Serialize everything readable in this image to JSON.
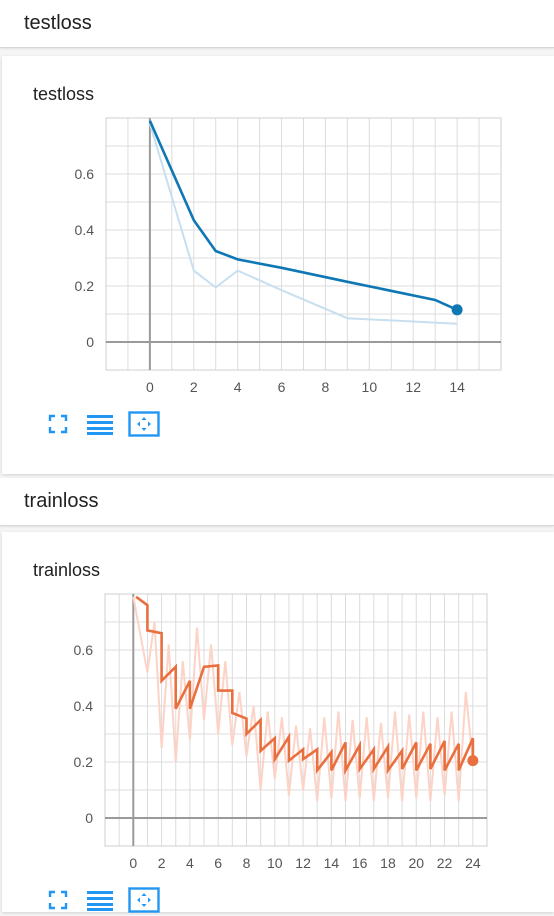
{
  "sections": [
    {
      "header": "testloss",
      "card_title": "testloss"
    },
    {
      "header": "trainloss",
      "card_title": "trainloss"
    }
  ],
  "toolbar": {
    "icons": [
      "fullscreen-icon",
      "data-table-icon",
      "fit-domain-icon"
    ],
    "accent": "#2196f3"
  },
  "chart_data": [
    {
      "type": "line",
      "title": "testloss",
      "xlabel": "",
      "ylabel": "",
      "xlim": [
        -2,
        16
      ],
      "ylim": [
        -0.1,
        0.8
      ],
      "xticks": [
        "0",
        "2",
        "4",
        "6",
        "8",
        "10",
        "12",
        "14"
      ],
      "yticks": [
        "0",
        "0.2",
        "0.4",
        "0.6"
      ],
      "grid": true,
      "series": [
        {
          "role": "raw",
          "color": "#c8dff0",
          "x": [
            0,
            2,
            3,
            4,
            6,
            9,
            14
          ],
          "y": [
            0.78,
            0.255,
            0.195,
            0.255,
            0.185,
            0.085,
            0.065
          ]
        },
        {
          "role": "smoothed",
          "color": "#0e77b4",
          "x": [
            0,
            2,
            3,
            4,
            6,
            9,
            13,
            14
          ],
          "y": [
            0.79,
            0.435,
            0.325,
            0.295,
            0.265,
            0.215,
            0.15,
            0.115
          ]
        }
      ]
    },
    {
      "type": "line",
      "title": "trainloss",
      "xlabel": "",
      "ylabel": "",
      "xlim": [
        -2,
        25
      ],
      "ylim": [
        -0.1,
        0.8
      ],
      "xticks": [
        "0",
        "2",
        "4",
        "6",
        "8",
        "10",
        "12",
        "14",
        "16",
        "18",
        "20",
        "22",
        "24"
      ],
      "yticks": [
        "0",
        "0.2",
        "0.4",
        "0.6"
      ],
      "grid": true,
      "series": [
        {
          "role": "raw",
          "color": "#fcd3c6",
          "x": [
            0,
            1,
            1.5,
            2,
            2.5,
            3,
            3.5,
            4,
            4.5,
            5,
            5.5,
            6,
            6.5,
            7,
            7.5,
            8,
            8.5,
            9,
            9.5,
            10,
            10.5,
            11,
            11.5,
            12,
            12.5,
            13,
            13.5,
            14,
            14.5,
            15,
            15.5,
            16,
            16.5,
            17,
            17.5,
            18,
            18.5,
            19,
            19.5,
            20,
            20.5,
            21,
            21.5,
            22,
            22.5,
            23,
            23.5,
            24
          ],
          "y": [
            0.79,
            0.52,
            0.7,
            0.25,
            0.62,
            0.2,
            0.56,
            0.28,
            0.68,
            0.35,
            0.62,
            0.3,
            0.56,
            0.26,
            0.45,
            0.22,
            0.4,
            0.1,
            0.38,
            0.14,
            0.36,
            0.08,
            0.33,
            0.1,
            0.32,
            0.06,
            0.36,
            0.07,
            0.38,
            0.06,
            0.35,
            0.07,
            0.36,
            0.06,
            0.34,
            0.07,
            0.38,
            0.06,
            0.37,
            0.07,
            0.38,
            0.06,
            0.36,
            0.08,
            0.38,
            0.06,
            0.45,
            0.2
          ]
        },
        {
          "role": "smoothed",
          "color": "#e8703f",
          "x": [
            0.2,
            1,
            1,
            2,
            2,
            3,
            3,
            4,
            4,
            5,
            6,
            6,
            7,
            7,
            8,
            8,
            9,
            9,
            10,
            10,
            11,
            11,
            12,
            12,
            13,
            13,
            14,
            14,
            15,
            15,
            16,
            16,
            17,
            17,
            18,
            18,
            19,
            19,
            20,
            20,
            21,
            21,
            22,
            22,
            23,
            23,
            24,
            24
          ],
          "y": [
            0.79,
            0.76,
            0.67,
            0.66,
            0.49,
            0.54,
            0.39,
            0.49,
            0.39,
            0.54,
            0.545,
            0.455,
            0.455,
            0.375,
            0.355,
            0.3,
            0.35,
            0.24,
            0.285,
            0.21,
            0.29,
            0.205,
            0.245,
            0.21,
            0.245,
            0.17,
            0.235,
            0.17,
            0.27,
            0.17,
            0.26,
            0.175,
            0.245,
            0.175,
            0.255,
            0.17,
            0.24,
            0.175,
            0.27,
            0.17,
            0.265,
            0.175,
            0.275,
            0.17,
            0.265,
            0.17,
            0.285,
            0.205
          ]
        }
      ]
    }
  ]
}
